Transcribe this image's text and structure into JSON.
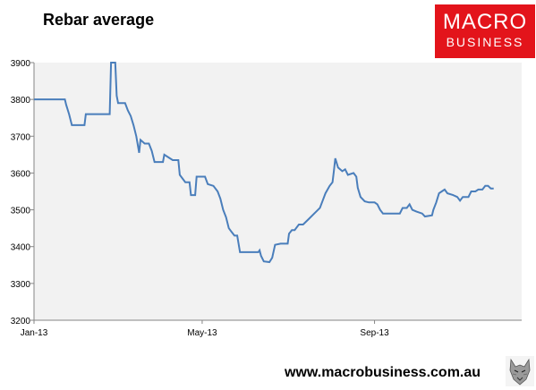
{
  "header": {
    "title": "Rebar average"
  },
  "logo": {
    "line1": "MACRO",
    "line2": "BUSINESS",
    "background_color": "#e3141b"
  },
  "footer": {
    "url": "www.macrobusiness.com.au",
    "mascot_icon": "wolf-head-icon"
  },
  "colors": {
    "line": "#4a7ebb",
    "plot_background": "#f2f2f2",
    "axis": "#868686"
  },
  "chart_data": {
    "type": "line",
    "title": "Rebar average",
    "xlabel": "",
    "ylabel": "",
    "ylim": [
      3200,
      3900
    ],
    "yticks": [
      3200,
      3300,
      3400,
      3500,
      3600,
      3700,
      3800,
      3900
    ],
    "xlim": [
      "2013-01-01",
      "2013-12-15"
    ],
    "xticks": [
      {
        "date": "2013-01-01",
        "label": "Jan-13"
      },
      {
        "date": "2013-05-01",
        "label": "May-13"
      },
      {
        "date": "2013-09-01",
        "label": "Sep-13"
      }
    ],
    "grid": false,
    "legend": "none",
    "series": [
      {
        "values": [
          [
            "2013-01-01",
            3800
          ],
          [
            "2013-01-23",
            3800
          ],
          [
            "2013-01-24",
            3785
          ],
          [
            "2013-01-26",
            3760
          ],
          [
            "2013-01-28",
            3730
          ],
          [
            "2013-02-06",
            3730
          ],
          [
            "2013-02-07",
            3760
          ],
          [
            "2013-02-24",
            3760
          ],
          [
            "2013-02-25",
            3900
          ],
          [
            "2013-02-28",
            3900
          ],
          [
            "2013-03-01",
            3810
          ],
          [
            "2013-03-02",
            3790
          ],
          [
            "2013-03-07",
            3790
          ],
          [
            "2013-03-09",
            3770
          ],
          [
            "2013-03-11",
            3755
          ],
          [
            "2013-03-13",
            3730
          ],
          [
            "2013-03-15",
            3700
          ],
          [
            "2013-03-17",
            3655
          ],
          [
            "2013-03-18",
            3690
          ],
          [
            "2013-03-21",
            3680
          ],
          [
            "2013-03-24",
            3680
          ],
          [
            "2013-03-26",
            3660
          ],
          [
            "2013-03-28",
            3630
          ],
          [
            "2013-04-03",
            3630
          ],
          [
            "2013-04-04",
            3650
          ],
          [
            "2013-04-08",
            3640
          ],
          [
            "2013-04-10",
            3635
          ],
          [
            "2013-04-14",
            3635
          ],
          [
            "2013-04-15",
            3595
          ],
          [
            "2013-04-17",
            3585
          ],
          [
            "2013-04-19",
            3575
          ],
          [
            "2013-04-22",
            3575
          ],
          [
            "2013-04-23",
            3540
          ],
          [
            "2013-04-26",
            3540
          ],
          [
            "2013-04-27",
            3590
          ],
          [
            "2013-05-03",
            3590
          ],
          [
            "2013-05-05",
            3570
          ],
          [
            "2013-05-09",
            3565
          ],
          [
            "2013-05-12",
            3550
          ],
          [
            "2013-05-14",
            3530
          ],
          [
            "2013-05-16",
            3500
          ],
          [
            "2013-05-18",
            3480
          ],
          [
            "2013-05-20",
            3450
          ],
          [
            "2013-05-22",
            3440
          ],
          [
            "2013-05-24",
            3430
          ],
          [
            "2013-05-26",
            3430
          ],
          [
            "2013-05-28",
            3385
          ],
          [
            "2013-06-10",
            3385
          ],
          [
            "2013-06-11",
            3390
          ],
          [
            "2013-06-12",
            3375
          ],
          [
            "2013-06-14",
            3360
          ],
          [
            "2013-06-18",
            3358
          ],
          [
            "2013-06-20",
            3370
          ],
          [
            "2013-06-22",
            3405
          ],
          [
            "2013-06-26",
            3408
          ],
          [
            "2013-07-01",
            3408
          ],
          [
            "2013-07-02",
            3435
          ],
          [
            "2013-07-04",
            3445
          ],
          [
            "2013-07-06",
            3445
          ],
          [
            "2013-07-09",
            3460
          ],
          [
            "2013-07-12",
            3460
          ],
          [
            "2013-07-16",
            3475
          ],
          [
            "2013-07-20",
            3490
          ],
          [
            "2013-07-24",
            3505
          ],
          [
            "2013-07-26",
            3525
          ],
          [
            "2013-07-28",
            3545
          ],
          [
            "2013-07-31",
            3565
          ],
          [
            "2013-08-02",
            3575
          ],
          [
            "2013-08-03",
            3605
          ],
          [
            "2013-08-04",
            3640
          ],
          [
            "2013-08-06",
            3615
          ],
          [
            "2013-08-09",
            3605
          ],
          [
            "2013-08-11",
            3610
          ],
          [
            "2013-08-13",
            3595
          ],
          [
            "2013-08-17",
            3600
          ],
          [
            "2013-08-19",
            3590
          ],
          [
            "2013-08-20",
            3560
          ],
          [
            "2013-08-22",
            3535
          ],
          [
            "2013-08-25",
            3523
          ],
          [
            "2013-08-28",
            3520
          ],
          [
            "2013-09-01",
            3520
          ],
          [
            "2013-09-03",
            3515
          ],
          [
            "2013-09-05",
            3500
          ],
          [
            "2013-09-07",
            3490
          ],
          [
            "2013-09-19",
            3490
          ],
          [
            "2013-09-21",
            3505
          ],
          [
            "2013-09-24",
            3505
          ],
          [
            "2013-09-26",
            3515
          ],
          [
            "2013-09-28",
            3500
          ],
          [
            "2013-10-01",
            3495
          ],
          [
            "2013-10-05",
            3490
          ],
          [
            "2013-10-07",
            3482
          ],
          [
            "2013-10-12",
            3485
          ],
          [
            "2013-10-13",
            3500
          ],
          [
            "2013-10-15",
            3520
          ],
          [
            "2013-10-17",
            3545
          ],
          [
            "2013-10-19",
            3550
          ],
          [
            "2013-10-21",
            3555
          ],
          [
            "2013-10-23",
            3545
          ],
          [
            "2013-10-27",
            3540
          ],
          [
            "2013-10-30",
            3535
          ],
          [
            "2013-11-01",
            3525
          ],
          [
            "2013-11-03",
            3535
          ],
          [
            "2013-11-07",
            3535
          ],
          [
            "2013-11-09",
            3550
          ],
          [
            "2013-11-12",
            3550
          ],
          [
            "2013-11-14",
            3555
          ],
          [
            "2013-11-17",
            3555
          ],
          [
            "2013-11-19",
            3565
          ],
          [
            "2013-11-21",
            3565
          ],
          [
            "2013-11-23",
            3558
          ],
          [
            "2013-11-25",
            3558
          ]
        ]
      }
    ]
  }
}
